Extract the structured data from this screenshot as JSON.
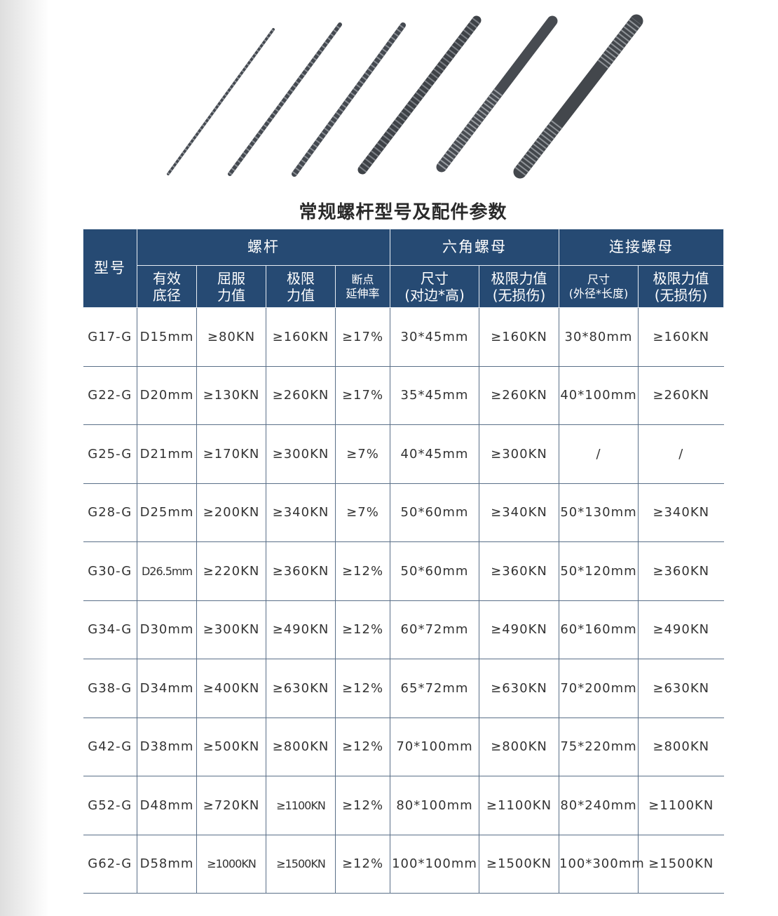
{
  "title": "常规螺杆型号及配件参数",
  "header": {
    "model": "型号",
    "groups": [
      "螺杆",
      "六角螺母",
      "连接螺母"
    ],
    "sub": [
      [
        "有效",
        "底径"
      ],
      [
        "屈服",
        "力值"
      ],
      [
        "极限",
        "力值"
      ],
      [
        "断点",
        "延伸率"
      ],
      [
        "尺寸",
        "(对边*高)"
      ],
      [
        "极限力值",
        "(无损伤)"
      ],
      [
        "尺寸",
        "(外径*长度)"
      ],
      [
        "极限力值",
        "(无损伤)"
      ]
    ]
  },
  "rows": [
    [
      "G17-G",
      "D15mm",
      "≥80KN",
      "≥160KN",
      "≥17%",
      "30*45mm",
      "≥160KN",
      "30*80mm",
      "≥160KN"
    ],
    [
      "G22-G",
      "D20mm",
      "≥130KN",
      "≥260KN",
      "≥17%",
      "35*45mm",
      "≥260KN",
      "40*100mm",
      "≥260KN"
    ],
    [
      "G25-G",
      "D21mm",
      "≥170KN",
      "≥300KN",
      "≥7%",
      "40*45mm",
      "≥300KN",
      "/",
      "/"
    ],
    [
      "G28-G",
      "D25mm",
      "≥200KN",
      "≥340KN",
      "≥7%",
      "50*60mm",
      "≥340KN",
      "50*130mm",
      "≥340KN"
    ],
    [
      "G30-G",
      "D26.5mm",
      "≥220KN",
      "≥360KN",
      "≥12%",
      "50*60mm",
      "≥360KN",
      "50*120mm",
      "≥360KN"
    ],
    [
      "G34-G",
      "D30mm",
      "≥300KN",
      "≥490KN",
      "≥12%",
      "60*72mm",
      "≥490KN",
      "60*160mm",
      "≥490KN"
    ],
    [
      "G38-G",
      "D34mm",
      "≥400KN",
      "≥630KN",
      "≥12%",
      "65*72mm",
      "≥630KN",
      "70*200mm",
      "≥630KN"
    ],
    [
      "G42-G",
      "D38mm",
      "≥500KN",
      "≥800KN",
      "≥12%",
      "70*100mm",
      "≥800KN",
      "75*220mm",
      "≥800KN"
    ],
    [
      "G52-G",
      "D48mm",
      "≥720KN",
      "≥1100KN",
      "≥12%",
      "80*100mm",
      "≥1100KN",
      "80*240mm",
      "≥1100KN"
    ],
    [
      "G62-G",
      "D58mm",
      "≥1000KN",
      "≥1500KN",
      "≥12%",
      "100*100mm",
      "≥1500KN",
      "100*300mm",
      "≥1500KN"
    ]
  ],
  "colors": {
    "header_bg": "#264a73",
    "header_text": "#ffffff"
  }
}
